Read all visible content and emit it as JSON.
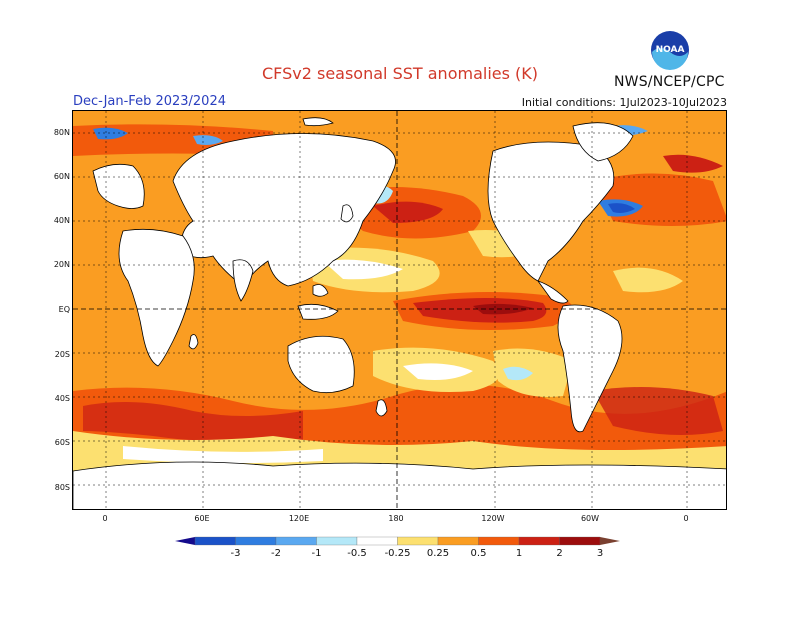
{
  "title": "CFSv2 seasonal SST anomalies (K)",
  "season": "Dec-Jan-Feb 2023/2024",
  "initial_conditions": "Initial conditions: 1Jul2023-10Jul2023",
  "agency": "NWS/NCEP/CPC",
  "logo_text": "NOAA",
  "lat_labels": [
    "80N",
    "60N",
    "40N",
    "20N",
    "EQ",
    "20S",
    "40S",
    "60S",
    "80S"
  ],
  "lon_labels": [
    "0",
    "60E",
    "120E",
    "180",
    "120W",
    "60W",
    "0"
  ],
  "colorbar_labels": [
    "-3",
    "-2",
    "-1",
    "-0.5",
    "-0.25",
    "0.25",
    "0.5",
    "1",
    "2",
    "3"
  ],
  "colors": {
    "lt_m3": "#140a8c",
    "m3_m2": "#1b52c8",
    "m2_m1": "#2f7de0",
    "m1_m05": "#5aa8f0",
    "m05_m025": "#b4e8f8",
    "neutral": "#ffffff",
    "p025_p05": "#fce070",
    "p05_p1": "#fa9d22",
    "p1_p2": "#f25a0c",
    "p2_p3": "#cc2114",
    "gt_p3": "#9c0d0d",
    "extreme": "#7a4030"
  }
}
